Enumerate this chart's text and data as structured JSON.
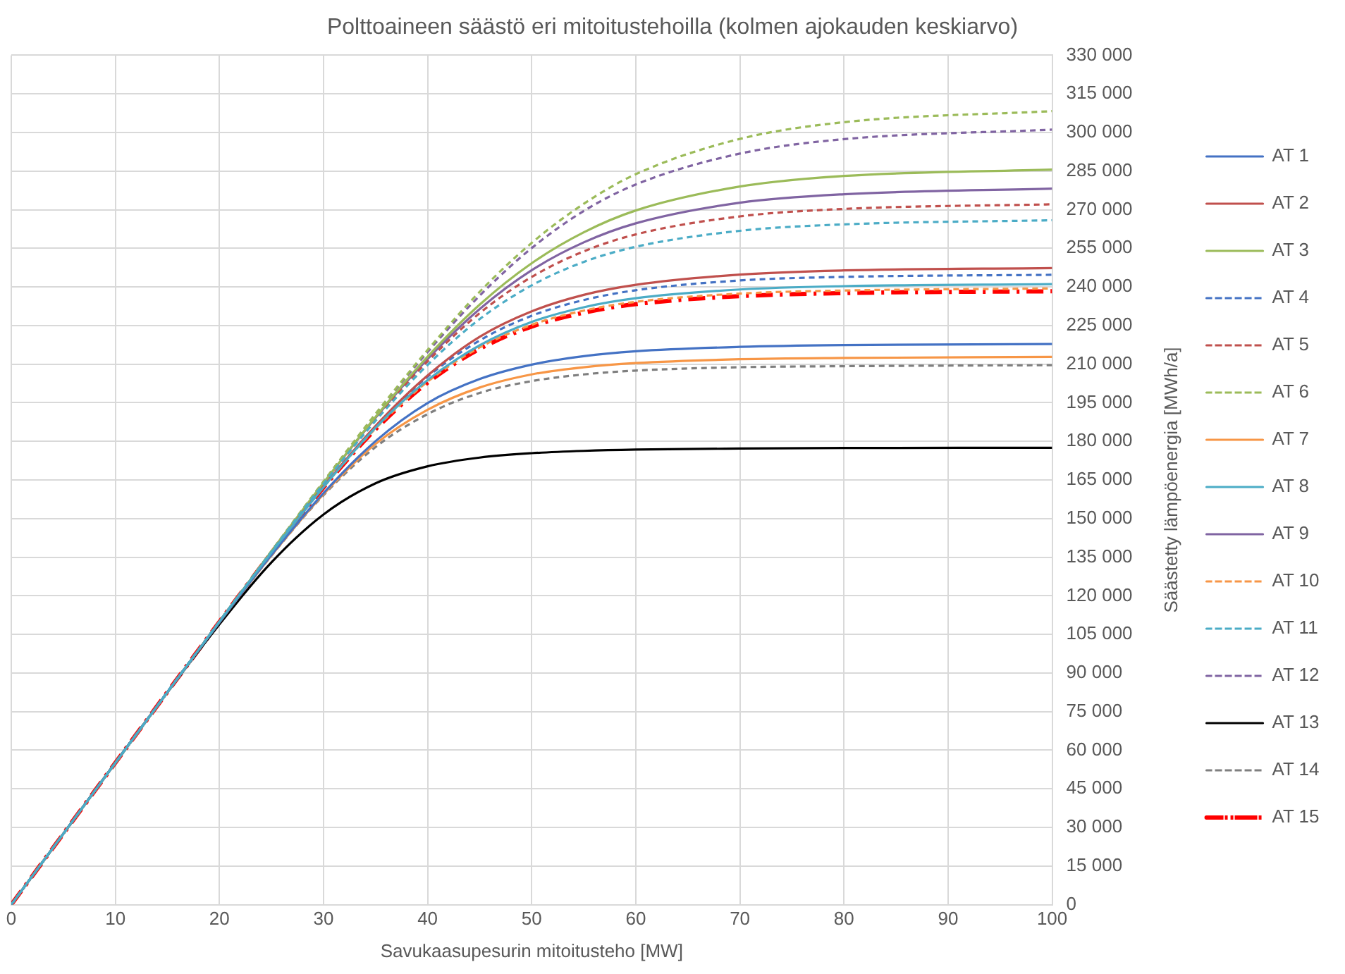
{
  "chart_data": {
    "type": "line",
    "title": "Polttoaineen säästö eri mitoitustehoilla (kolmen ajokauden keskiarvo)",
    "xlabel": "Savukaasupesurin mitoitusteho [MW]",
    "ylabel": "Säästetty lämpöenergia [MWh/a]",
    "x": [
      0,
      20,
      25,
      30,
      35,
      40,
      45,
      50,
      55,
      60,
      70,
      80,
      100
    ],
    "xlim": [
      0,
      100
    ],
    "xticks": [
      0,
      10,
      20,
      30,
      40,
      50,
      60,
      70,
      80,
      90,
      100
    ],
    "ylim": [
      0,
      330000
    ],
    "yticks": [
      {
        "value": 0,
        "label": "0"
      },
      {
        "value": 15000,
        "label": "15 000"
      },
      {
        "value": 30000,
        "label": "30 000"
      },
      {
        "value": 45000,
        "label": "45 000"
      },
      {
        "value": 60000,
        "label": "60 000"
      },
      {
        "value": 75000,
        "label": "75 000"
      },
      {
        "value": 90000,
        "label": "90 000"
      },
      {
        "value": 105000,
        "label": "105 000"
      },
      {
        "value": 120000,
        "label": "120 000"
      },
      {
        "value": 135000,
        "label": "135 000"
      },
      {
        "value": 150000,
        "label": "150 000"
      },
      {
        "value": 165000,
        "label": "165 000"
      },
      {
        "value": 180000,
        "label": "180 000"
      },
      {
        "value": 195000,
        "label": "195 000"
      },
      {
        "value": 210000,
        "label": "210 000"
      },
      {
        "value": 225000,
        "label": "225 000"
      },
      {
        "value": 240000,
        "label": "240 000"
      },
      {
        "value": 255000,
        "label": "255 000"
      },
      {
        "value": 270000,
        "label": "270 000"
      },
      {
        "value": 285000,
        "label": "285 000"
      },
      {
        "value": 300000,
        "label": "300 000"
      },
      {
        "value": 315000,
        "label": "315 000"
      },
      {
        "value": 330000,
        "label": "330 000"
      }
    ],
    "grid": true,
    "legend": "right",
    "marker": "none",
    "series": [
      {
        "name": "AT 1",
        "color": "#4472c4",
        "line_style": "solid",
        "values": [
          0,
          109700,
          135900,
          159900,
          180100,
          194900,
          204200,
          209800,
          213100,
          215000,
          216700,
          217400,
          217800
        ]
      },
      {
        "name": "AT 2",
        "color": "#c0504d",
        "line_style": "solid",
        "values": [
          0,
          110000,
          136700,
          162500,
          186000,
          205600,
          220600,
          230500,
          236900,
          240800,
          244800,
          246400,
          247300
        ]
      },
      {
        "name": "AT 3",
        "color": "#9bbb59",
        "line_style": "solid",
        "values": [
          0,
          110000,
          137300,
          163900,
          189500,
          212900,
          233100,
          249200,
          261200,
          269700,
          279000,
          283100,
          285600
        ]
      },
      {
        "name": "AT 4",
        "color": "#4472c4",
        "line_style": "dashed",
        "values": [
          0,
          110000,
          136800,
          162400,
          185700,
          205100,
          219200,
          228800,
          234900,
          238700,
          242500,
          243900,
          244700
        ]
      },
      {
        "name": "AT 5",
        "color": "#c0504d",
        "line_style": "dashed",
        "values": [
          0,
          110000,
          137100,
          163600,
          188900,
          211100,
          229800,
          243900,
          253800,
          260400,
          267400,
          270300,
          272100
        ]
      },
      {
        "name": "AT 6",
        "color": "#9bbb59",
        "line_style": "dashed",
        "values": [
          0,
          110000,
          137400,
          164400,
          190700,
          215500,
          238100,
          257100,
          272300,
          283800,
          297500,
          304000,
          308300
        ]
      },
      {
        "name": "AT 7",
        "color": "#f79646",
        "line_style": "solid",
        "values": [
          0,
          109700,
          135700,
          159500,
          179000,
          192300,
          200900,
          206000,
          208800,
          210400,
          211900,
          212400,
          212800
        ]
      },
      {
        "name": "AT 8",
        "color": "#4bacc6",
        "line_style": "solid",
        "values": [
          0,
          110000,
          136800,
          162200,
          185300,
          203800,
          217300,
          226400,
          232100,
          235600,
          239000,
          240300,
          241100
        ]
      },
      {
        "name": "AT 9",
        "color": "#8064a2",
        "line_style": "solid",
        "values": [
          0,
          109900,
          137200,
          163800,
          189200,
          212000,
          231400,
          246500,
          257300,
          264700,
          272700,
          276000,
          278200
        ]
      },
      {
        "name": "AT 10",
        "color": "#f79646",
        "line_style": "dashed",
        "values": [
          0,
          109900,
          136700,
          162200,
          185000,
          203200,
          216500,
          225300,
          230800,
          234200,
          237400,
          238600,
          239400
        ]
      },
      {
        "name": "AT 11",
        "color": "#4bacc6",
        "line_style": "dashed",
        "values": [
          0,
          110000,
          137100,
          163500,
          188000,
          209700,
          227500,
          240600,
          249700,
          255600,
          261800,
          264300,
          265900
        ]
      },
      {
        "name": "AT 12",
        "color": "#8064a2",
        "line_style": "dashed",
        "values": [
          0,
          110000,
          137300,
          164300,
          190500,
          214700,
          236600,
          255100,
          269500,
          279800,
          291800,
          297400,
          301100
        ]
      },
      {
        "name": "AT 13",
        "color": "#000000",
        "line_style": "solid",
        "values": [
          0,
          108900,
          133000,
          151600,
          163700,
          170300,
          173700,
          175400,
          176300,
          176800,
          177200,
          177400,
          177500
        ]
      },
      {
        "name": "AT 14",
        "color": "#7f7f7f",
        "line_style": "dashed",
        "values": [
          0,
          109600,
          135600,
          159100,
          177800,
          190600,
          198800,
          203400,
          206000,
          207500,
          208800,
          209200,
          209600
        ]
      },
      {
        "name": "AT 15",
        "color": "#ff0000",
        "line_style": "dashdot",
        "values": [
          0,
          109900,
          136700,
          162100,
          184700,
          202800,
          215900,
          224600,
          230000,
          233300,
          236400,
          237600,
          238300
        ]
      }
    ]
  }
}
